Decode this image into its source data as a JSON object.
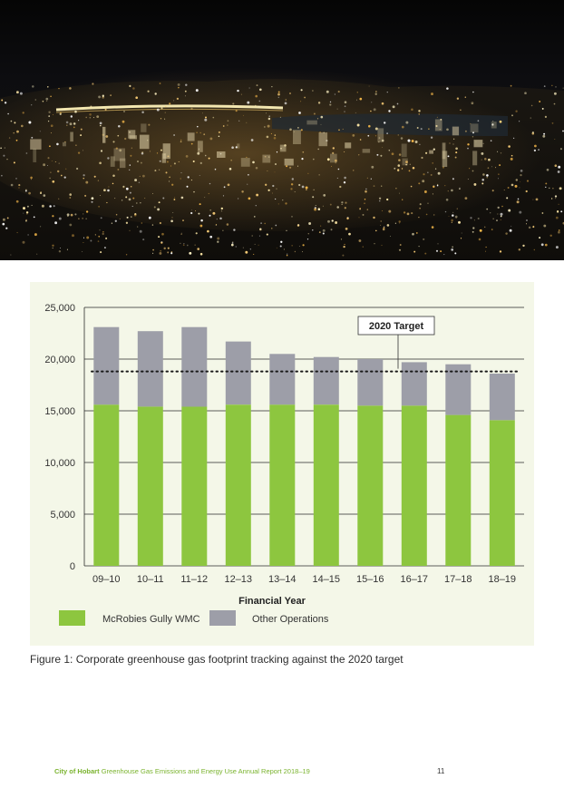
{
  "chart_data": {
    "type": "bar",
    "stacked": true,
    "categories": [
      "09–10",
      "10–11",
      "11–12",
      "12–13",
      "13–14",
      "14–15",
      "15–16",
      "16–17",
      "17–18",
      "18–19"
    ],
    "series": [
      {
        "name": "McRobies Gully WMC",
        "color": "#8dc63f",
        "values": [
          15600,
          15400,
          15400,
          15600,
          15600,
          15600,
          15500,
          15500,
          14600,
          14100
        ]
      },
      {
        "name": "Other Operations",
        "color": "#9d9ea8",
        "values": [
          7500,
          7300,
          7700,
          6100,
          4900,
          4600,
          4500,
          4200,
          4900,
          4500
        ]
      }
    ],
    "ylim": [
      0,
      25000
    ],
    "yticks": [
      0,
      5000,
      10000,
      15000,
      20000,
      25000
    ],
    "ytick_labels": [
      "0",
      "5,000",
      "10,000",
      "15,000",
      "20,000",
      "25,000"
    ],
    "xlabel": "Financial Year",
    "ylabel": "",
    "target": {
      "label": "2020 Target",
      "value": 18800,
      "style": "dotted"
    },
    "gridlines": true,
    "legend_position": "bottom-left"
  },
  "colors": {
    "panel_background": "#f4f7e8",
    "green": "#8dc63f",
    "grey": "#9d9ea8",
    "footer_green": "#7ab32e"
  },
  "caption": "Figure 1: Corporate greenhouse gas footprint tracking against the 2020 target",
  "footer": {
    "org": "City of Hobart",
    "title": "Greenhouse Gas Emissions and Energy Use Annual Report 2018–19",
    "page_number": "11"
  }
}
